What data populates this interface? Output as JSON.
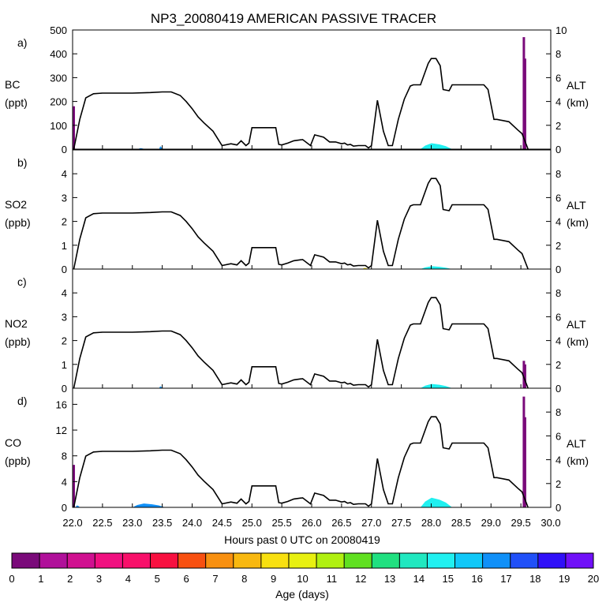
{
  "chart_data": {
    "type": "area",
    "title": "NP3_20080419 AMERICAN PASSIVE TRACER",
    "xlabel": "Hours past 0 UTC on 20080419",
    "xlim": [
      22.0,
      30.0
    ],
    "x_ticks": [
      "22.0",
      "22.5",
      "23.0",
      "23.5",
      "24.0",
      "24.5",
      "25.0",
      "25.5",
      "26.0",
      "26.5",
      "27.0",
      "27.5",
      "28.0",
      "28.5",
      "29.0",
      "29.5",
      "30.0"
    ],
    "right_axis": {
      "label_line1": "ALT",
      "label_line2": "(km)",
      "ylim": [
        0,
        10
      ],
      "altitude_profile": {
        "x": [
          22.02,
          22.12,
          22.22,
          22.35,
          22.5,
          23.0,
          23.3,
          23.5,
          23.65,
          23.8,
          23.9,
          24.0,
          24.1,
          24.2,
          24.35,
          24.45,
          24.5,
          24.65,
          24.75,
          24.82,
          24.9,
          24.95,
          25.0,
          25.3,
          25.4,
          25.45,
          25.5,
          25.6,
          25.7,
          25.85,
          25.98,
          26.05,
          26.2,
          26.3,
          26.4,
          26.5,
          26.55,
          26.6,
          26.65,
          26.7,
          26.78,
          26.9,
          26.95,
          27.0,
          27.1,
          27.2,
          27.28,
          27.35,
          27.45,
          27.55,
          27.65,
          27.7,
          27.82,
          27.95,
          28.0,
          28.08,
          28.15,
          28.2,
          28.3,
          28.35,
          28.5,
          28.88,
          28.95,
          29.05,
          29.1,
          29.3,
          29.45,
          29.52,
          29.62
        ],
        "y": [
          0,
          2.5,
          4.3,
          4.65,
          4.7,
          4.7,
          4.75,
          4.8,
          4.8,
          4.5,
          4.0,
          3.4,
          2.7,
          2.2,
          1.5,
          0.7,
          0.3,
          0.45,
          0.35,
          0.7,
          0.3,
          0.5,
          1.8,
          1.8,
          1.8,
          0.4,
          0.35,
          0.5,
          0.7,
          0.8,
          0.3,
          1.2,
          1.0,
          0.6,
          0.6,
          0.45,
          0.5,
          0.35,
          0.4,
          0.25,
          0.3,
          0.3,
          0.1,
          0.3,
          4.1,
          1.5,
          0.3,
          0.3,
          2.5,
          4.2,
          5.3,
          5.4,
          5.4,
          7.2,
          7.6,
          7.6,
          7.0,
          5.0,
          4.9,
          5.4,
          5.4,
          5.4,
          5.0,
          2.5,
          2.5,
          2.3,
          1.6,
          1.3,
          0
        ]
      }
    },
    "panels": [
      {
        "tag": "a)",
        "species": "BC",
        "unit": "(ppt)",
        "ylim": [
          0,
          500
        ],
        "y_ticks": [
          "0",
          "100",
          "200",
          "300",
          "400",
          "500"
        ],
        "y_tick_values": [
          0,
          100,
          200,
          300,
          400,
          500
        ],
        "alt_ticks": [
          "0",
          "2",
          "4",
          "6",
          "8",
          "10"
        ],
        "alt_tick_values": [
          0,
          2,
          4,
          6,
          8,
          10
        ],
        "tracer_bars": [
          {
            "x": 22.02,
            "value": 180,
            "age_days": 0.5
          },
          {
            "x": 29.55,
            "value": 470,
            "age_days": 0.5
          },
          {
            "x": 29.57,
            "value": 380,
            "age_days": 0.5
          }
        ],
        "tracer_areas": [
          {
            "x0": 27.82,
            "x1": 28.35,
            "value": 25,
            "age_days": 15.5
          },
          {
            "x0": 23.45,
            "x1": 23.5,
            "value": 12,
            "age_days": 17.5
          },
          {
            "x0": 23.1,
            "x1": 23.2,
            "value": 4,
            "age_days": 17.5
          }
        ]
      },
      {
        "tag": "b)",
        "species": "SO2",
        "unit": "(ppb)",
        "ylim": [
          0,
          5
        ],
        "y_ticks": [
          "0",
          "1",
          "2",
          "3",
          "4"
        ],
        "y_tick_values": [
          0,
          1,
          2,
          3,
          4
        ],
        "alt_ticks": [
          "0",
          "2",
          "4",
          "6",
          "8"
        ],
        "alt_tick_values": [
          0,
          2,
          4,
          6,
          8
        ],
        "tracer_bars": [],
        "tracer_areas": [
          {
            "x0": 27.82,
            "x1": 28.35,
            "value": 0.12,
            "age_days": 15.5
          },
          {
            "x0": 26.85,
            "x1": 26.95,
            "value": 0.05,
            "age_days": 9.5
          }
        ]
      },
      {
        "tag": "c)",
        "species": "NO2",
        "unit": "(ppb)",
        "ylim": [
          0,
          5
        ],
        "y_ticks": [
          "0",
          "1",
          "2",
          "3",
          "4"
        ],
        "y_tick_values": [
          0,
          1,
          2,
          3,
          4
        ],
        "alt_ticks": [
          "0",
          "2",
          "4",
          "6",
          "8"
        ],
        "alt_tick_values": [
          0,
          2,
          4,
          6,
          8
        ],
        "tracer_bars": [
          {
            "x": 29.55,
            "value": 1.15,
            "age_days": 0.5
          },
          {
            "x": 29.57,
            "value": 1.0,
            "age_days": 0.5
          }
        ],
        "tracer_areas": [
          {
            "x0": 27.82,
            "x1": 28.35,
            "value": 0.18,
            "age_days": 15.5
          },
          {
            "x0": 23.45,
            "x1": 23.5,
            "value": 0.08,
            "age_days": 17.5
          }
        ]
      },
      {
        "tag": "d)",
        "species": "CO",
        "unit": "(ppb)",
        "ylim": [
          0,
          18.5
        ],
        "y_ticks": [
          "0",
          "4",
          "8",
          "12",
          "16"
        ],
        "y_tick_values": [
          0,
          4,
          8,
          12,
          16
        ],
        "alt_ticks": [
          "0",
          "2",
          "4",
          "6",
          "8"
        ],
        "alt_tick_values": [
          0,
          2,
          4,
          6,
          8
        ],
        "tracer_bars": [
          {
            "x": 22.02,
            "value": 6.6,
            "age_days": 0.5
          },
          {
            "x": 29.55,
            "value": 17.2,
            "age_days": 0.5
          },
          {
            "x": 29.57,
            "value": 14.0,
            "age_days": 0.5
          }
        ],
        "tracer_areas": [
          {
            "x0": 27.82,
            "x1": 28.35,
            "value": 1.5,
            "age_days": 15.5
          },
          {
            "x0": 23.0,
            "x1": 23.55,
            "value": 0.6,
            "age_days": 17.5
          },
          {
            "x0": 22.05,
            "x1": 22.12,
            "value": 0.3,
            "age_days": 17.5
          }
        ]
      }
    ],
    "colorbar": {
      "label": "Age (days)",
      "ticks": [
        "0",
        "1",
        "2",
        "3",
        "4",
        "5",
        "6",
        "7",
        "8",
        "9",
        "10",
        "11",
        "12",
        "13",
        "14",
        "15",
        "16",
        "17",
        "18",
        "19",
        "20"
      ],
      "colors": [
        "#7a0a7a",
        "#b0109a",
        "#d01090",
        "#f01080",
        "#f8106a",
        "#f81040",
        "#f85010",
        "#f89010",
        "#f8b810",
        "#f8e010",
        "#e8f010",
        "#b0f010",
        "#60e020",
        "#20e080",
        "#20e8c0",
        "#20f0f0",
        "#10c8f8",
        "#1090f8",
        "#2050f8",
        "#3010f8",
        "#7010f8"
      ]
    }
  }
}
